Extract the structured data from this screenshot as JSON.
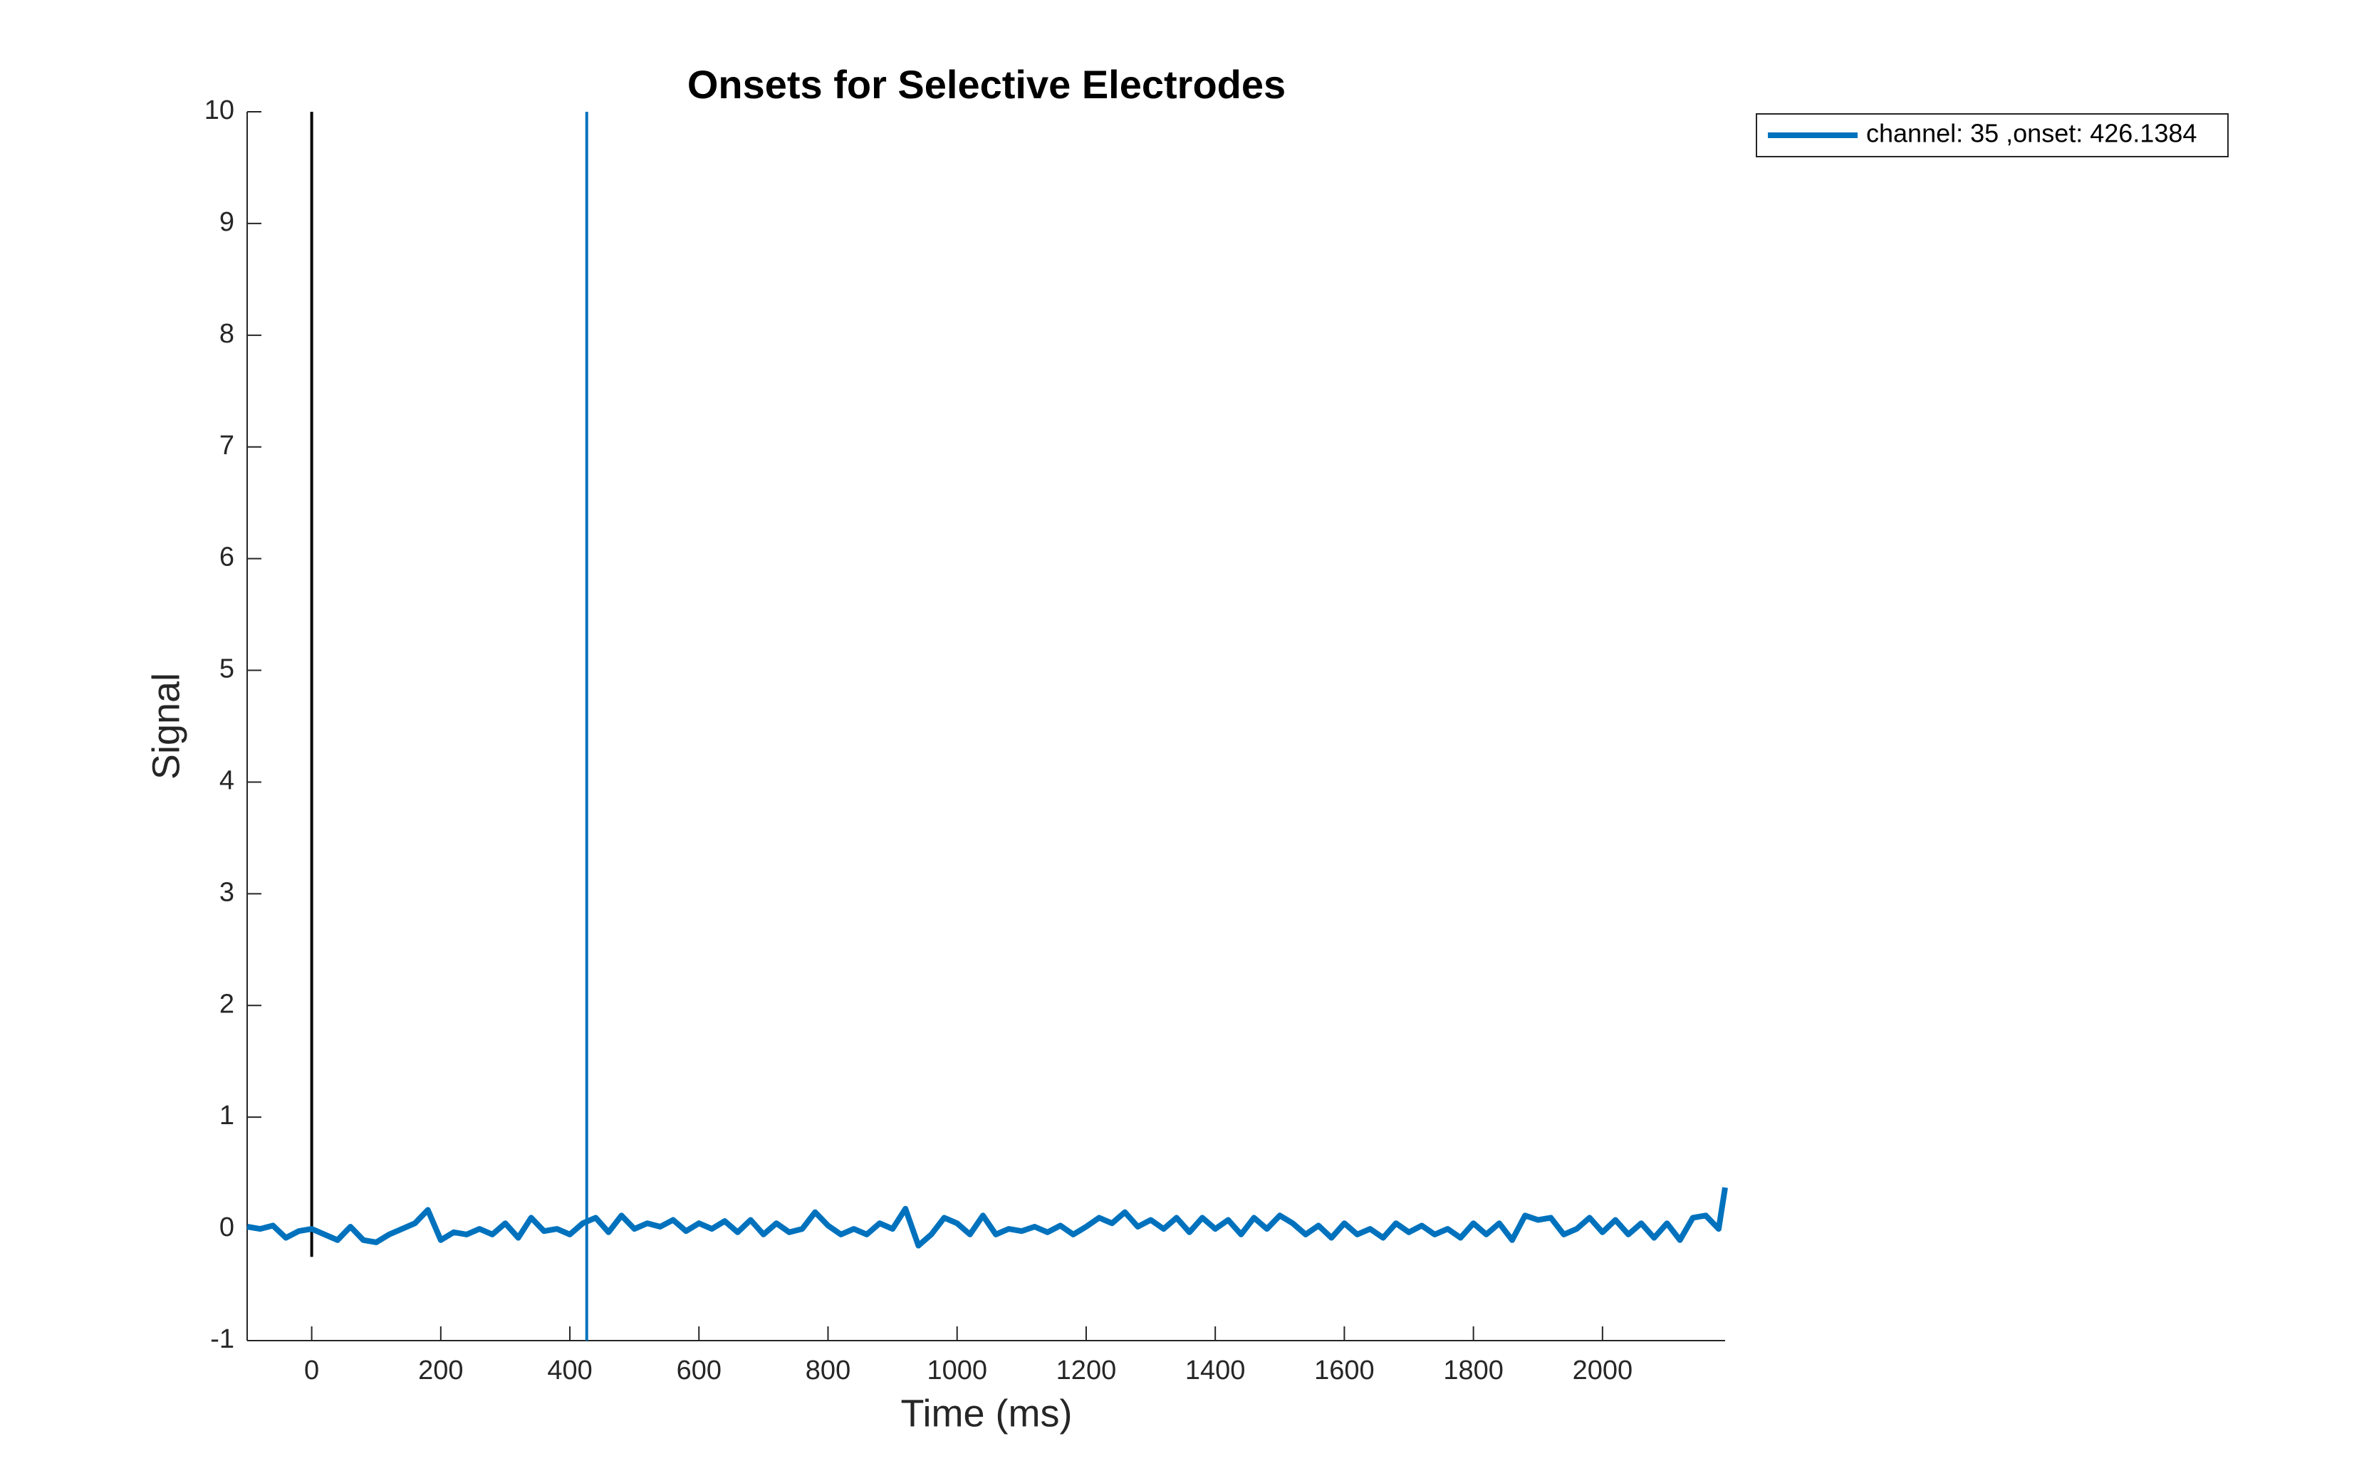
{
  "chart_data": {
    "type": "line",
    "title": "Onsets for Selective Electrodes",
    "xlabel": "Time (ms)",
    "ylabel": "Signal",
    "xlim": [
      -100,
      2190
    ],
    "ylim": [
      -1,
      10
    ],
    "xticks": [
      0,
      200,
      400,
      600,
      800,
      1000,
      1200,
      1400,
      1600,
      1800,
      2000
    ],
    "yticks": [
      -1,
      0,
      1,
      2,
      3,
      4,
      5,
      6,
      7,
      8,
      9,
      10
    ],
    "legend": "upper right outside",
    "x": [
      -100,
      -80,
      -60,
      -40,
      -20,
      0,
      20,
      40,
      60,
      80,
      100,
      120,
      140,
      160,
      180,
      200,
      220,
      240,
      260,
      280,
      300,
      320,
      340,
      360,
      380,
      400,
      420,
      440,
      460,
      480,
      500,
      520,
      540,
      560,
      580,
      600,
      620,
      640,
      660,
      680,
      700,
      720,
      740,
      760,
      780,
      800,
      820,
      840,
      860,
      880,
      900,
      920,
      940,
      960,
      980,
      1000,
      1020,
      1040,
      1060,
      1080,
      1100,
      1120,
      1140,
      1160,
      1180,
      1200,
      1220,
      1240,
      1260,
      1280,
      1300,
      1320,
      1340,
      1360,
      1380,
      1400,
      1420,
      1440,
      1460,
      1480,
      1500,
      1520,
      1540,
      1560,
      1580,
      1600,
      1620,
      1640,
      1660,
      1680,
      1700,
      1720,
      1740,
      1760,
      1780,
      1800,
      1820,
      1840,
      1860,
      1880,
      1900,
      1920,
      1940,
      1960,
      1980,
      2000,
      2020,
      2040,
      2060,
      2080,
      2100,
      2120,
      2140,
      2160,
      2180,
      2190
    ],
    "series": [
      {
        "name": "channel: 35 ,onset: 426.1384",
        "color": "#0072bd",
        "values": [
          0.02,
          0.0,
          0.03,
          -0.08,
          -0.02,
          0.0,
          -0.05,
          -0.1,
          0.02,
          -0.1,
          -0.12,
          -0.05,
          0.0,
          0.05,
          0.17,
          -0.1,
          -0.03,
          -0.05,
          0.0,
          -0.05,
          0.05,
          -0.08,
          0.1,
          -0.02,
          0.0,
          -0.05,
          0.05,
          0.1,
          -0.03,
          0.12,
          0.0,
          0.05,
          0.02,
          0.08,
          -0.02,
          0.05,
          0.0,
          0.07,
          -0.03,
          0.08,
          -0.05,
          0.05,
          -0.03,
          0.0,
          0.15,
          0.03,
          -0.05,
          0.0,
          -0.05,
          0.05,
          0.0,
          0.18,
          -0.15,
          -0.05,
          0.1,
          0.05,
          -0.05,
          0.12,
          -0.05,
          0.0,
          -0.02,
          0.02,
          -0.03,
          0.03,
          -0.05,
          0.02,
          0.1,
          0.05,
          0.15,
          0.02,
          0.08,
          0.0,
          0.1,
          -0.03,
          0.1,
          0.0,
          0.08,
          -0.05,
          0.1,
          0.0,
          0.12,
          0.05,
          -0.05,
          0.03,
          -0.08,
          0.05,
          -0.05,
          0.0,
          -0.08,
          0.05,
          -0.03,
          0.03,
          -0.05,
          0.0,
          -0.08,
          0.05,
          -0.05,
          0.05,
          -0.1,
          0.12,
          0.08,
          0.1,
          -0.05,
          0.0,
          0.1,
          -0.03,
          0.08,
          -0.05,
          0.05,
          -0.08,
          0.05,
          -0.1,
          0.1,
          0.12,
          0.0,
          0.37
        ]
      }
    ],
    "vlines": [
      {
        "x": 0,
        "ymin": -0.25,
        "ymax": 10,
        "color": "#000000"
      },
      {
        "x": 426.1384,
        "ymin": -1,
        "ymax": 10,
        "color": "#0072bd"
      }
    ]
  }
}
